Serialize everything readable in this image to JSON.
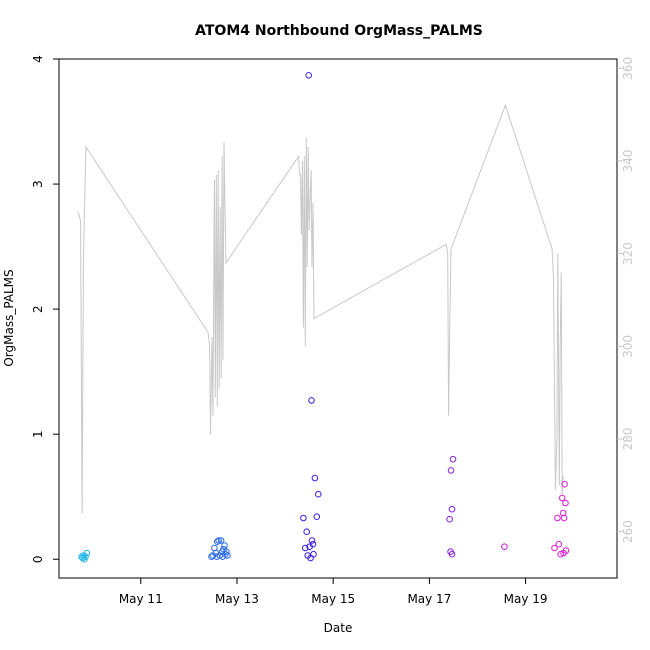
{
  "chart_data": {
    "type": "scatter",
    "title": "ATOM4 Northbound OrgMass_PALMS",
    "xlabel": "Date",
    "ylabel": "OrgMass_PALMS",
    "x_ticks": [
      {
        "day": 11,
        "label": "May 11"
      },
      {
        "day": 13,
        "label": "May 13"
      },
      {
        "day": 15,
        "label": "May 15"
      },
      {
        "day": 17,
        "label": "May 17"
      },
      {
        "day": 19,
        "label": "May 19"
      }
    ],
    "xlim_days": [
      9.3,
      20.9
    ],
    "ylim": [
      -0.15,
      4.0
    ],
    "y_ticks": [
      0,
      1,
      2,
      3,
      4
    ],
    "y2lim": [
      250,
      362
    ],
    "y2_ticks": [
      260,
      280,
      300,
      320,
      340,
      360
    ],
    "y2_color": "#c8c8c8",
    "grid": false,
    "legend": "none",
    "series_points": [
      {
        "day": 9.77,
        "value": 0.02,
        "color": "#22b5e6"
      },
      {
        "day": 9.79,
        "value": 0.01,
        "color": "#22b5e6"
      },
      {
        "day": 9.81,
        "value": 0.03,
        "color": "#22b5e6"
      },
      {
        "day": 9.83,
        "value": 0.0,
        "color": "#22b5e6"
      },
      {
        "day": 9.85,
        "value": 0.02,
        "color": "#22b5e6"
      },
      {
        "day": 9.88,
        "value": 0.05,
        "color": "#22b5e6"
      },
      {
        "day": 12.47,
        "value": 0.02,
        "color": "#2a6ae8"
      },
      {
        "day": 12.5,
        "value": 0.03,
        "color": "#2a6ae8"
      },
      {
        "day": 12.53,
        "value": 0.09,
        "color": "#2a6ae8"
      },
      {
        "day": 12.56,
        "value": 0.05,
        "color": "#2a6ae8"
      },
      {
        "day": 12.59,
        "value": 0.14,
        "color": "#2a6ae8"
      },
      {
        "day": 12.62,
        "value": 0.15,
        "color": "#2a6ae8"
      },
      {
        "day": 12.64,
        "value": 0.03,
        "color": "#2a6ae8"
      },
      {
        "day": 12.67,
        "value": 0.15,
        "color": "#2a6ae8"
      },
      {
        "day": 12.69,
        "value": 0.06,
        "color": "#2a6ae8"
      },
      {
        "day": 12.72,
        "value": 0.08,
        "color": "#2a6ae8"
      },
      {
        "day": 12.74,
        "value": 0.11,
        "color": "#2a6ae8"
      },
      {
        "day": 12.76,
        "value": 0.04,
        "color": "#2a6ae8"
      },
      {
        "day": 12.78,
        "value": 0.06,
        "color": "#2a6ae8"
      },
      {
        "day": 12.8,
        "value": 0.03,
        "color": "#2a6ae8"
      },
      {
        "day": 12.58,
        "value": 0.02,
        "color": "#2a6ae8"
      },
      {
        "day": 12.7,
        "value": 0.02,
        "color": "#2a6ae8"
      },
      {
        "day": 14.38,
        "value": 0.33,
        "color": "#3c1ef0"
      },
      {
        "day": 14.42,
        "value": 0.09,
        "color": "#3c1ef0"
      },
      {
        "day": 14.45,
        "value": 0.22,
        "color": "#3c1ef0"
      },
      {
        "day": 14.47,
        "value": 0.03,
        "color": "#3c1ef0"
      },
      {
        "day": 14.49,
        "value": 3.87,
        "color": "#3c1ef0"
      },
      {
        "day": 14.51,
        "value": 0.1,
        "color": "#3c1ef0"
      },
      {
        "day": 14.53,
        "value": 0.01,
        "color": "#3c1ef0"
      },
      {
        "day": 14.55,
        "value": 1.27,
        "color": "#3c1ef0"
      },
      {
        "day": 14.56,
        "value": 0.15,
        "color": "#3c1ef0"
      },
      {
        "day": 14.58,
        "value": 0.12,
        "color": "#3c1ef0"
      },
      {
        "day": 14.59,
        "value": 0.04,
        "color": "#3c1ef0"
      },
      {
        "day": 14.62,
        "value": 0.65,
        "color": "#3c1ef0"
      },
      {
        "day": 14.66,
        "value": 0.34,
        "color": "#3c1ef0"
      },
      {
        "day": 14.69,
        "value": 0.52,
        "color": "#3c1ef0"
      },
      {
        "day": 17.42,
        "value": 0.32,
        "color": "#8b1ee0"
      },
      {
        "day": 17.45,
        "value": 0.71,
        "color": "#8b1ee0"
      },
      {
        "day": 17.47,
        "value": 0.4,
        "color": "#8b1ee0"
      },
      {
        "day": 17.49,
        "value": 0.8,
        "color": "#8b1ee0"
      },
      {
        "day": 17.44,
        "value": 0.06,
        "color": "#8b1ee0"
      },
      {
        "day": 17.47,
        "value": 0.04,
        "color": "#8b1ee0"
      },
      {
        "day": 18.56,
        "value": 0.1,
        "color": "#c81ee0"
      },
      {
        "day": 19.6,
        "value": 0.09,
        "color": "#e01ed8"
      },
      {
        "day": 19.66,
        "value": 0.33,
        "color": "#e01ed8"
      },
      {
        "day": 19.69,
        "value": 0.12,
        "color": "#e01ed8"
      },
      {
        "day": 19.73,
        "value": 0.04,
        "color": "#e01ed8"
      },
      {
        "day": 19.76,
        "value": 0.49,
        "color": "#e01ed8"
      },
      {
        "day": 19.78,
        "value": 0.37,
        "color": "#e01ed8"
      },
      {
        "day": 19.8,
        "value": 0.33,
        "color": "#e01ed8"
      },
      {
        "day": 19.81,
        "value": 0.6,
        "color": "#e01ed8"
      },
      {
        "day": 19.83,
        "value": 0.45,
        "color": "#e01ed8"
      },
      {
        "day": 19.79,
        "value": 0.05,
        "color": "#e01ed8"
      },
      {
        "day": 19.84,
        "value": 0.07,
        "color": "#e01ed8"
      }
    ],
    "altitude_line": {
      "color": "#c8c8c8",
      "points": [
        [
          9.7,
          329
        ],
        [
          9.75,
          327
        ],
        [
          9.78,
          264
        ],
        [
          9.81,
          320
        ],
        [
          9.86,
          343
        ],
        [
          12.4,
          303
        ],
        [
          12.43,
          300
        ],
        [
          12.45,
          281
        ],
        [
          12.48,
          302
        ],
        [
          12.5,
          285
        ],
        [
          12.53,
          336
        ],
        [
          12.55,
          289
        ],
        [
          12.57,
          337
        ],
        [
          12.59,
          287
        ],
        [
          12.61,
          338
        ],
        [
          12.63,
          291
        ],
        [
          12.65,
          330
        ],
        [
          12.67,
          293
        ],
        [
          12.69,
          341
        ],
        [
          12.71,
          297
        ],
        [
          12.73,
          344
        ],
        [
          12.77,
          318
        ],
        [
          14.28,
          341
        ],
        [
          14.3,
          337
        ],
        [
          14.32,
          337
        ],
        [
          14.34,
          324
        ],
        [
          14.36,
          340
        ],
        [
          14.38,
          304
        ],
        [
          14.4,
          341
        ],
        [
          14.42,
          300
        ],
        [
          14.44,
          345
        ],
        [
          14.46,
          317
        ],
        [
          14.48,
          343
        ],
        [
          14.5,
          325
        ],
        [
          14.52,
          332
        ],
        [
          14.54,
          338
        ],
        [
          14.56,
          317
        ],
        [
          14.58,
          331
        ],
        [
          14.6,
          306
        ],
        [
          17.35,
          322
        ],
        [
          17.38,
          320
        ],
        [
          17.4,
          285
        ],
        [
          17.42,
          302
        ],
        [
          17.45,
          321
        ],
        [
          18.58,
          352
        ],
        [
          19.55,
          321
        ],
        [
          19.58,
          315
        ],
        [
          19.62,
          269
        ],
        [
          19.65,
          280
        ],
        [
          19.67,
          320
        ],
        [
          19.7,
          270
        ],
        [
          19.72,
          300
        ],
        [
          19.74,
          316
        ],
        [
          19.76,
          268
        ],
        [
          19.78,
          272
        ]
      ]
    }
  }
}
